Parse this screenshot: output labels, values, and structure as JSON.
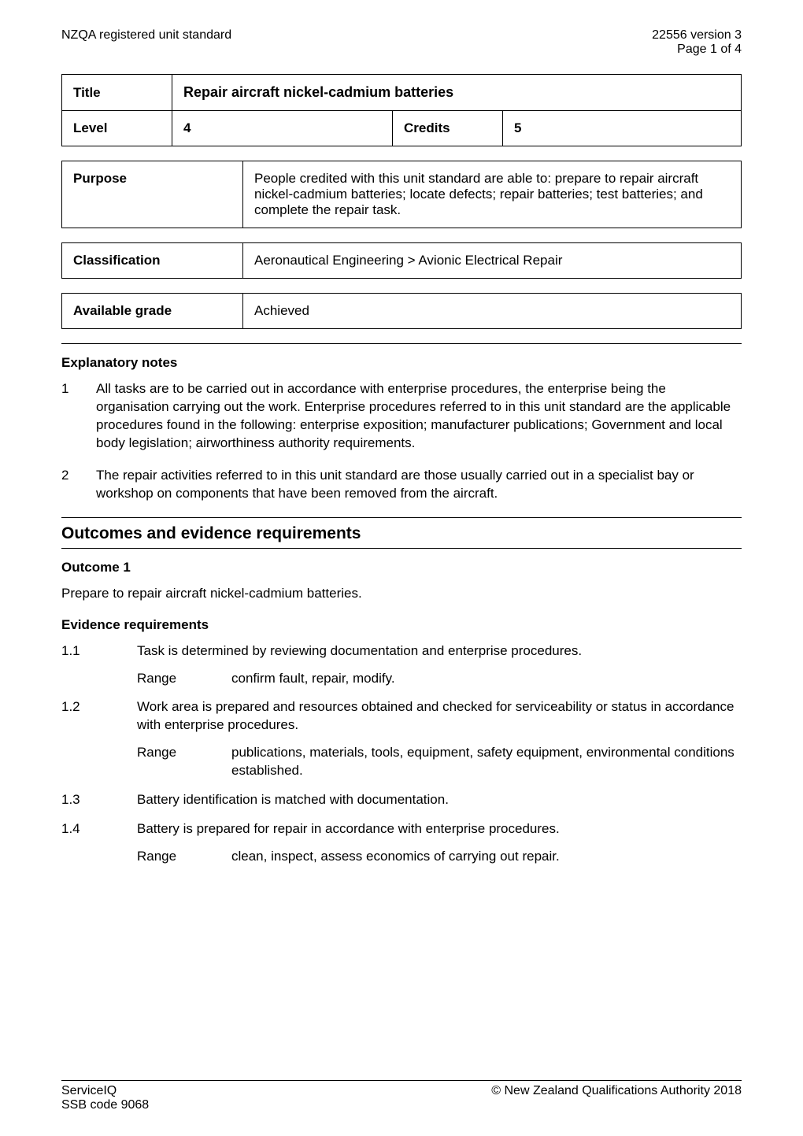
{
  "header": {
    "left": "NZQA registered unit standard",
    "right_line1": "22556 version 3",
    "right_line2": "Page 1 of 4"
  },
  "title_table": {
    "title_label": "Title",
    "title_value": "Repair aircraft nickel-cadmium batteries",
    "level_label": "Level",
    "level_value": "4",
    "credits_label": "Credits",
    "credits_value": "5"
  },
  "purpose": {
    "label": "Purpose",
    "text": "People credited with this unit standard are able to: prepare to repair aircraft nickel-cadmium batteries; locate defects; repair batteries; test batteries; and complete the repair task."
  },
  "classification": {
    "label": "Classification",
    "text": "Aeronautical Engineering > Avionic Electrical Repair"
  },
  "available_grade": {
    "label": "Available grade",
    "text": "Achieved"
  },
  "explanatory": {
    "heading": "Explanatory notes",
    "notes": [
      "All tasks are to be carried out in accordance with enterprise procedures, the enterprise being the organisation carrying out the work.  Enterprise procedures referred to in this unit standard are the applicable procedures found in the following: enterprise exposition; manufacturer publications; Government and local body legislation; airworthiness authority requirements.",
      "The repair activities referred to in this unit standard are those usually carried out in a specialist bay or workshop on components that have been removed from the aircraft."
    ]
  },
  "outcomes_heading": "Outcomes and evidence requirements",
  "outcome1": {
    "heading": "Outcome 1",
    "desc": "Prepare to repair aircraft nickel-cadmium batteries.",
    "ev_heading": "Evidence requirements",
    "items": [
      {
        "num": "1.1",
        "text": "Task is determined by reviewing documentation and enterprise procedures.",
        "range_label": "Range",
        "range_text": "confirm fault, repair, modify."
      },
      {
        "num": "1.2",
        "text": "Work area is prepared and resources obtained and checked for serviceability or status in accordance with enterprise procedures.",
        "range_label": "Range",
        "range_text": "publications, materials, tools, equipment, safety equipment, environmental conditions established."
      },
      {
        "num": "1.3",
        "text": "Battery identification is matched with documentation.",
        "range_label": "",
        "range_text": ""
      },
      {
        "num": "1.4",
        "text": "Battery is prepared for repair in accordance with enterprise procedures.",
        "range_label": "Range",
        "range_text": "clean, inspect, assess economics of carrying out repair."
      }
    ]
  },
  "footer": {
    "left_line1": "ServiceIQ",
    "left_line2": "SSB code 9068",
    "right": "© New Zealand Qualifications Authority 2018"
  }
}
